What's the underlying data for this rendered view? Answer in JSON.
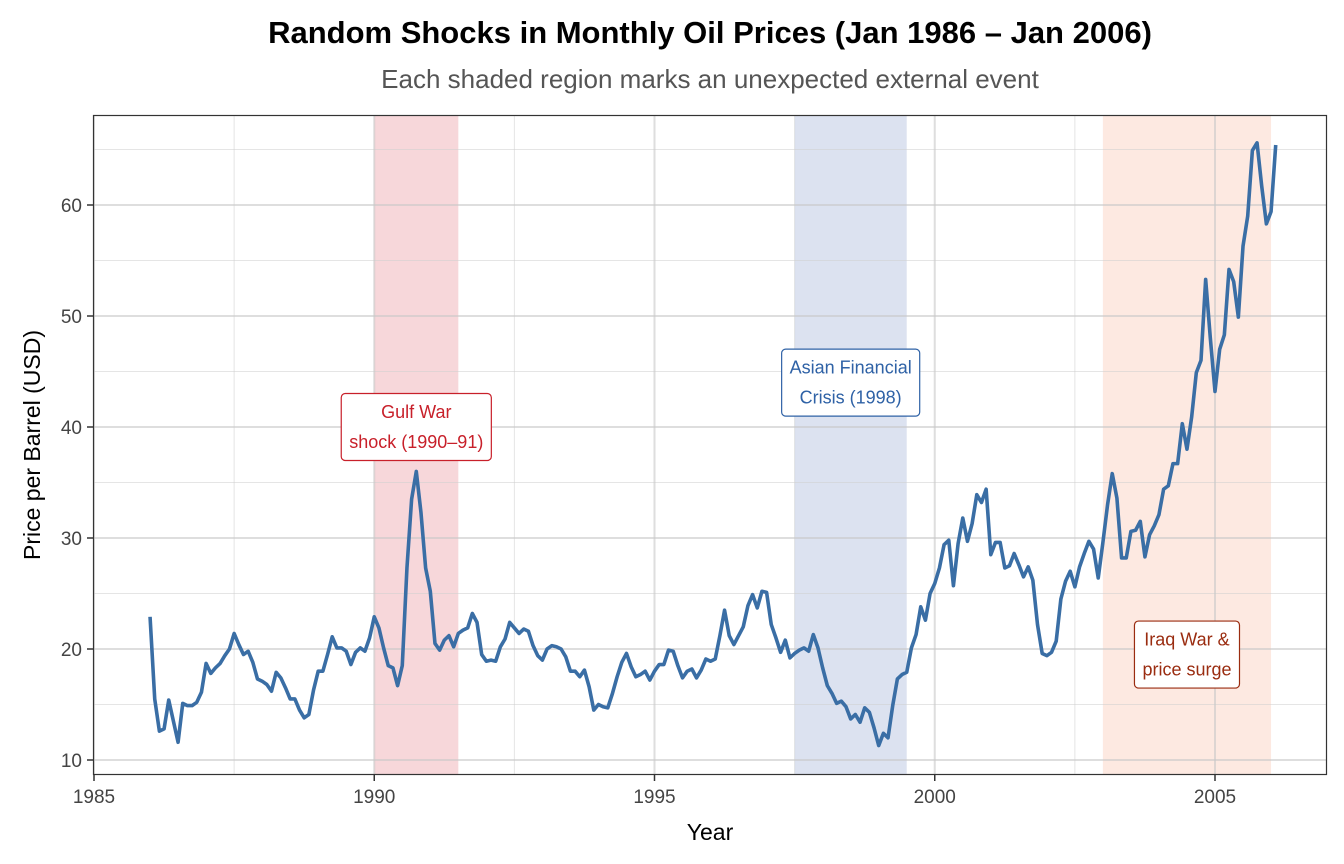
{
  "chart_data": {
    "type": "line",
    "title": "Random Shocks in Monthly Oil Prices (Jan 1986 – Jan 2006)",
    "subtitle": "Each shaded region marks an unexpected external event",
    "xlabel": "Year",
    "ylabel": "Price per Barrel (USD)",
    "xlim": [
      1985,
      2007
    ],
    "ylim": [
      9,
      68.5
    ],
    "x_ticks": [
      1985,
      1990,
      1995,
      2000,
      2005
    ],
    "x_tick_labels": [
      "1985",
      "1990",
      "1995",
      "2000",
      "2005"
    ],
    "y_ticks": [
      10,
      20,
      30,
      40,
      50,
      60
    ],
    "y_tick_labels": [
      "10",
      "20",
      "30",
      "40",
      "50",
      "60"
    ],
    "grid": true,
    "start": "Jan 1986",
    "end": "Jan 2006",
    "frequency": "monthly",
    "series": [
      {
        "name": "Oil price",
        "color": "#3A6EA5",
        "start_year": 1986.0,
        "step_years": 0.08333,
        "values": [
          22.9,
          15.5,
          12.6,
          12.8,
          15.4,
          13.5,
          11.6,
          15.1,
          14.9,
          14.9,
          15.2,
          16.1,
          18.7,
          17.8,
          18.3,
          18.7,
          19.4,
          20.0,
          21.4,
          20.4,
          19.5,
          19.8,
          18.8,
          17.3,
          17.1,
          16.8,
          16.2,
          17.9,
          17.4,
          16.5,
          15.5,
          15.5,
          14.5,
          13.8,
          14.1,
          16.3,
          18.0,
          18.0,
          19.5,
          21.1,
          20.1,
          20.1,
          19.8,
          18.6,
          19.7,
          20.1,
          19.8,
          21.0,
          22.9,
          21.9,
          20.1,
          18.5,
          18.3,
          16.7,
          18.5,
          27.3,
          33.5,
          36.0,
          32.3,
          27.3,
          25.2,
          20.5,
          19.9,
          20.8,
          21.2,
          20.2,
          21.4,
          21.7,
          21.9,
          23.2,
          22.4,
          19.5,
          18.9,
          19.0,
          18.9,
          20.2,
          20.9,
          22.4,
          21.9,
          21.4,
          21.8,
          21.6,
          20.3,
          19.4,
          19.0,
          20.0,
          20.3,
          20.2,
          20.0,
          19.3,
          18.0,
          18.0,
          17.5,
          18.1,
          16.6,
          14.5,
          15.0,
          14.8,
          14.7,
          16.0,
          17.5,
          18.8,
          19.6,
          18.4,
          17.5,
          17.7,
          18.0,
          17.2,
          18.0,
          18.6,
          18.6,
          19.9,
          19.8,
          18.5,
          17.4,
          18.0,
          18.2,
          17.4,
          18.1,
          19.1,
          18.9,
          19.1,
          21.2,
          23.5,
          21.2,
          20.4,
          21.2,
          22.0,
          23.9,
          24.9,
          23.7,
          25.2,
          25.1,
          22.2,
          21.0,
          19.7,
          20.8,
          19.2,
          19.6,
          19.9,
          20.1,
          19.8,
          21.3,
          20.1,
          18.3,
          16.7,
          16.0,
          15.1,
          15.3,
          14.8,
          13.7,
          14.1,
          13.4,
          14.7,
          14.3,
          12.9,
          11.3,
          12.4,
          12.0,
          14.9,
          17.3,
          17.7,
          17.9,
          20.1,
          21.3,
          23.8,
          22.6,
          25.0,
          25.9,
          27.3,
          29.4,
          29.8,
          25.7,
          29.5,
          31.8,
          29.7,
          31.3,
          33.9,
          33.2,
          34.4,
          28.5,
          29.6,
          29.6,
          27.3,
          27.5,
          28.6,
          27.6,
          26.5,
          27.4,
          26.2,
          22.2,
          19.6,
          19.4,
          19.7,
          20.7,
          24.5,
          26.1,
          27.0,
          25.6,
          27.4,
          28.6,
          29.7,
          29.0,
          26.4,
          29.6,
          33.0,
          35.8,
          33.6,
          28.2,
          28.2,
          30.6,
          30.7,
          31.5,
          28.3,
          30.3,
          31.1,
          32.1,
          34.4,
          34.7,
          36.7,
          36.7,
          40.3,
          38.0,
          40.9,
          44.9,
          46.0,
          53.3,
          48.0,
          43.2,
          47.0,
          48.3,
          54.2,
          53.1,
          49.9,
          56.3,
          59.0,
          64.9,
          65.6,
          61.7,
          58.3,
          59.4,
          65.4
        ]
      }
    ],
    "shaded_regions": [
      {
        "name": "Gulf War",
        "x_start": 1990.0,
        "x_end": 1991.5,
        "fill": "#F4C6CB"
      },
      {
        "name": "Asian Financial Crisis",
        "x_start": 1997.5,
        "x_end": 1999.5,
        "fill": "#CDD6EA"
      },
      {
        "name": "Iraq War",
        "x_start": 2003.0,
        "x_end": 2006.0,
        "fill": "#FCE0D4"
      }
    ],
    "annotations": [
      {
        "lines": [
          "Gulf War",
          "shock (1990–91)"
        ],
        "x": 1990.75,
        "y": 40.0,
        "color": "#C8202A"
      },
      {
        "lines": [
          "Asian Financial",
          "Crisis (1998)"
        ],
        "x": 1998.5,
        "y": 44.0,
        "color": "#2F62A6"
      },
      {
        "lines": [
          "Iraq War &",
          "price surge"
        ],
        "x": 2004.5,
        "y": 19.5,
        "color": "#9A2C10"
      }
    ]
  }
}
